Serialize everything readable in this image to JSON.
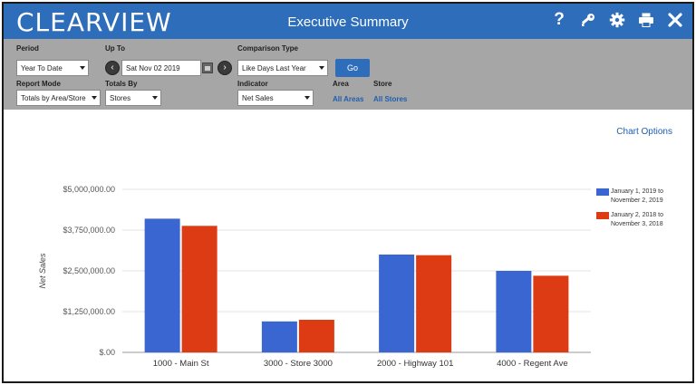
{
  "header": {
    "logo": "CLEARVIEW",
    "title": "Executive Summary",
    "icons": [
      "help-icon",
      "key-icon",
      "gear-icon",
      "print-icon",
      "close-icon"
    ]
  },
  "filters": {
    "period_label": "Period",
    "period_value": "Year To Date",
    "upto_label": "Up To",
    "upto_value": "Sat Nov 02 2019",
    "comparison_label": "Comparison Type",
    "comparison_value": "Like Days Last Year",
    "go_label": "Go",
    "report_mode_label": "Report Mode",
    "report_mode_value": "Totals by Area/Store",
    "totals_by_label": "Totals By",
    "totals_by_value": "Stores",
    "indicator_label": "Indicator",
    "indicator_value": "Net Sales",
    "area_label": "Area",
    "area_value": "All Areas",
    "store_label": "Store",
    "store_value": "All Stores"
  },
  "chart_options_label": "Chart Options",
  "colors": {
    "header": "#2d6db9",
    "series1": "#3a66d1",
    "series2": "#dd3b13"
  },
  "chart_data": {
    "type": "bar",
    "ylabel": "Net Sales",
    "xlabel": "",
    "categories": [
      "1000 - Main St",
      "3000 - Store 3000",
      "2000 - Highway 101",
      "4000 - Regent Ave"
    ],
    "series": [
      {
        "name": "January 1, 2019 to November 2, 2019",
        "line1": "January 1, 2019 to",
        "line2": "November 2, 2019",
        "values": [
          4100000,
          950000,
          3000000,
          2500000
        ]
      },
      {
        "name": "January 2, 2018 to November 3, 2018",
        "line1": "January 2, 2018 to",
        "line2": "November 3, 2018",
        "values": [
          3880000,
          1000000,
          2980000,
          2350000
        ]
      }
    ],
    "ylim": [
      0,
      5000000
    ],
    "yticks": [
      0,
      1250000,
      2500000,
      3750000,
      5000000
    ],
    "ytick_labels": [
      "$.00",
      "$1,250,000.00",
      "$2,500,000.00",
      "$3,750,000.00",
      "$5,000,000.00"
    ],
    "grid": true,
    "legend": "right"
  }
}
